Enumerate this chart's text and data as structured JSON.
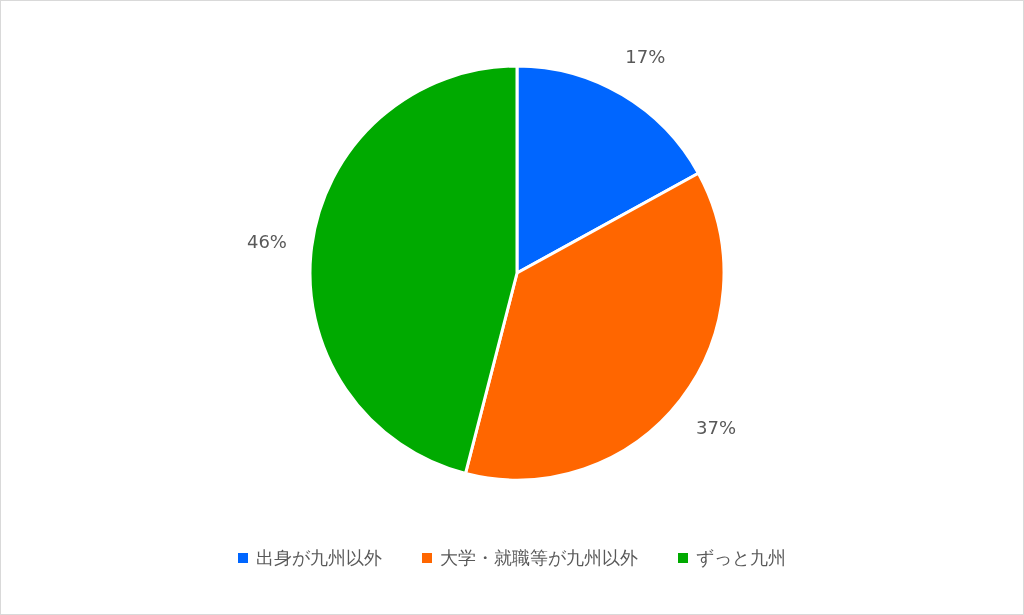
{
  "chart_data": {
    "type": "pie",
    "categories": [
      "出身が九州以外",
      "大学・就職等が九州以外",
      "ずっと九州"
    ],
    "values": [
      17,
      37,
      46
    ],
    "colors": [
      "#0066ff",
      "#ff6600",
      "#00aa00"
    ],
    "value_labels": [
      "17%",
      "37%",
      "46%"
    ],
    "legend": "bottom"
  }
}
